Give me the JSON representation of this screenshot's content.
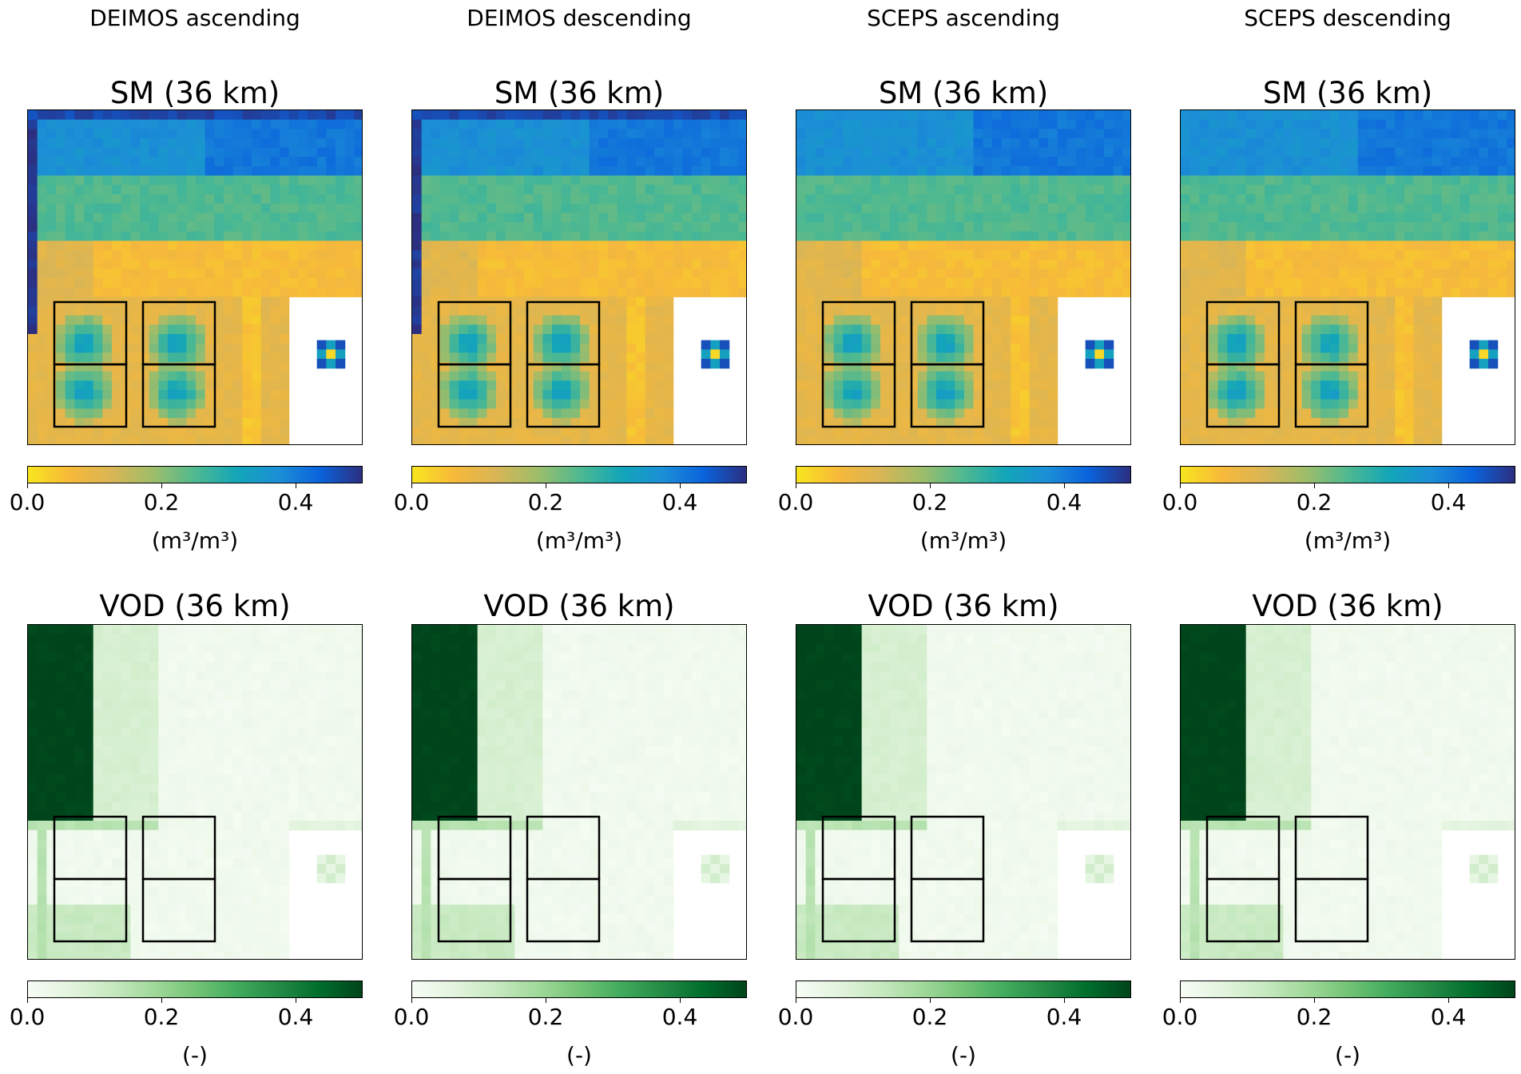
{
  "columns": [
    {
      "title": "DEIMOS ascending"
    },
    {
      "title": "DEIMOS descending"
    },
    {
      "title": "SCEPS ascending"
    },
    {
      "title": "SCEPS descending"
    }
  ],
  "rows": [
    {
      "panel_title": "SM (36 km)",
      "unit": "(m³/m³)",
      "ticks": [
        "0.0",
        "0.2",
        "0.4"
      ],
      "colormap": "yellow-green-blue (haline reversed)",
      "colors": [
        "#f7e51e",
        "#f7b93a",
        "#d9b555",
        "#9ebd6a",
        "#4fb990",
        "#13a6b8",
        "#1c8fd6",
        "#0a63dc",
        "#2c2f80"
      ]
    },
    {
      "panel_title": "VOD (36 km)",
      "unit": "(-)",
      "ticks": [
        "0.0",
        "0.2",
        "0.4"
      ],
      "colormap": "Greens",
      "colors": [
        "#f7fcf5",
        "#e3f4de",
        "#c7e9c0",
        "#a1d99b",
        "#74c476",
        "#41ab5d",
        "#238b45",
        "#006d2c",
        "#00441b"
      ]
    }
  ],
  "chart_data": [
    {
      "type": "heatmap",
      "title": "SM (36 km)",
      "column": "DEIMOS ascending",
      "colorbar_range": [
        0.0,
        0.5
      ],
      "colorbar_ticks": [
        0.0,
        0.2,
        0.4
      ],
      "colorbar_label": "(m³/m³)",
      "bands_rows_top_to_bottom": [
        0.42,
        0.26,
        0.08,
        0.1
      ],
      "overlay": "2×4 black rectangles over lower-left region, white masked block lower-right"
    },
    {
      "type": "heatmap",
      "title": "SM (36 km)",
      "column": "DEIMOS descending",
      "colorbar_range": [
        0.0,
        0.5
      ],
      "colorbar_ticks": [
        0.0,
        0.2,
        0.4
      ],
      "colorbar_label": "(m³/m³)",
      "bands_rows_top_to_bottom": [
        0.42,
        0.26,
        0.08,
        0.1
      ]
    },
    {
      "type": "heatmap",
      "title": "SM (36 km)",
      "column": "SCEPS ascending",
      "colorbar_range": [
        0.0,
        0.5
      ],
      "colorbar_ticks": [
        0.0,
        0.2,
        0.4
      ],
      "colorbar_label": "(m³/m³)",
      "bands_rows_top_to_bottom": [
        0.41,
        0.26,
        0.08,
        0.1
      ]
    },
    {
      "type": "heatmap",
      "title": "SM (36 km)",
      "column": "SCEPS descending",
      "colorbar_range": [
        0.0,
        0.5
      ],
      "colorbar_ticks": [
        0.0,
        0.2,
        0.4
      ],
      "colorbar_label": "(m³/m³)",
      "bands_rows_top_to_bottom": [
        0.41,
        0.26,
        0.08,
        0.1
      ]
    },
    {
      "type": "heatmap",
      "title": "VOD (36 km)",
      "column": "DEIMOS ascending",
      "colorbar_range": [
        0.0,
        0.5
      ],
      "colorbar_ticks": [
        0.0,
        0.2,
        0.4
      ],
      "colorbar_label": "(-)",
      "left_strip_value": 0.5,
      "background_value": 0.02,
      "light_band_value": 0.08
    },
    {
      "type": "heatmap",
      "title": "VOD (36 km)",
      "column": "DEIMOS descending",
      "colorbar_range": [
        0.0,
        0.5
      ],
      "colorbar_ticks": [
        0.0,
        0.2,
        0.4
      ],
      "colorbar_label": "(-)",
      "left_strip_value": 0.5,
      "background_value": 0.02,
      "light_band_value": 0.08
    },
    {
      "type": "heatmap",
      "title": "VOD (36 km)",
      "column": "SCEPS ascending",
      "colorbar_range": [
        0.0,
        0.5
      ],
      "colorbar_ticks": [
        0.0,
        0.2,
        0.4
      ],
      "colorbar_label": "(-)",
      "left_strip_value": 0.5,
      "background_value": 0.02,
      "light_band_value": 0.08
    },
    {
      "type": "heatmap",
      "title": "VOD (36 km)",
      "column": "SCEPS descending",
      "colorbar_range": [
        0.0,
        0.5
      ],
      "colorbar_ticks": [
        0.0,
        0.2,
        0.4
      ],
      "colorbar_label": "(-)",
      "left_strip_value": 0.5,
      "background_value": 0.02,
      "light_band_value": 0.08
    }
  ]
}
